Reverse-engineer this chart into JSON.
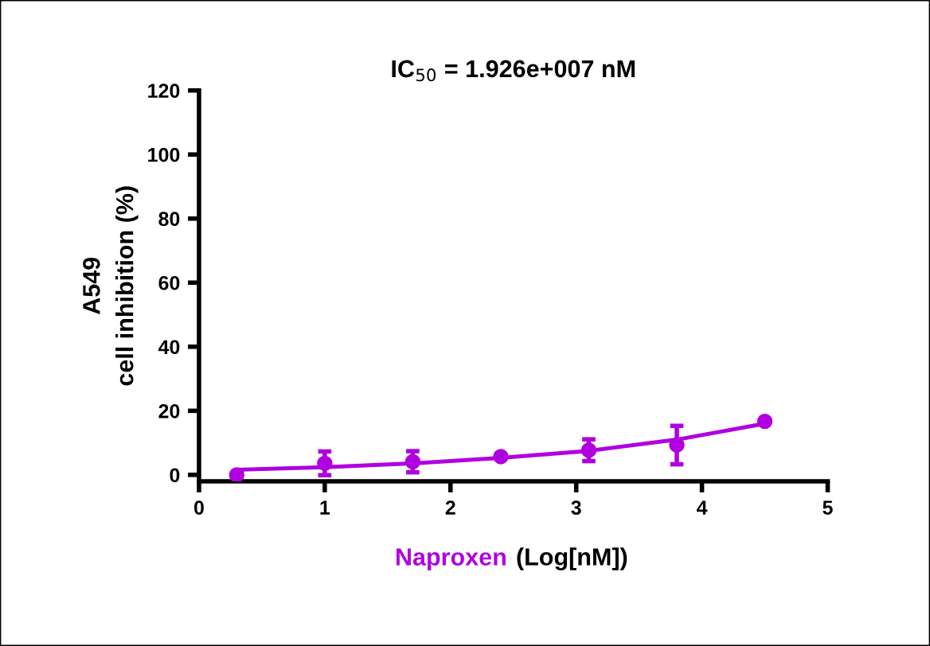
{
  "chart_data": {
    "type": "scatter",
    "title": "IC$_{50}$ = 1.926e+007 nM",
    "xlabel": "Naproxen (Log[nM])",
    "ylabel": "A549\ncell inhibition (%)",
    "series": [
      {
        "color": "#b000e0",
        "x": [
          0.3,
          1.0,
          1.7,
          2.4,
          3.1,
          3.8,
          4.5
        ],
        "values": [
          0,
          3.6,
          4.1,
          5.7,
          7.7,
          9.3,
          16.7
        ],
        "errors": [
          null,
          3.7,
          3.3,
          null,
          3.4,
          6,
          null
        ],
        "marker": "circle"
      },
      {
        "type": "line",
        "color": "#b000e0",
        "x": [
          0.3,
          1.0,
          1.7,
          2.4,
          3.1,
          3.8,
          4.5
        ],
        "values": [
          1.6,
          2.4,
          3.6,
          5.3,
          7.5,
          11,
          16
        ],
        "marker": "none",
        "line_style": "solid"
      }
    ],
    "xlim": [
      0,
      5
    ],
    "xticks": [
      0,
      1,
      2,
      3,
      4,
      5
    ],
    "ylim": [
      -2,
      120
    ],
    "yticks": [
      0,
      20,
      40,
      60,
      80,
      100,
      120
    ],
    "grid": false,
    "legend": false
  }
}
